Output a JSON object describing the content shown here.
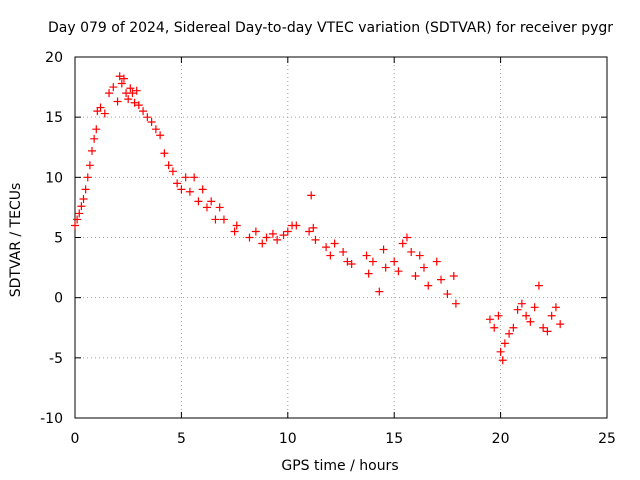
{
  "chart_data": {
    "type": "scatter",
    "title": "Day 079 of 2024, Sidereal Day-to-day VTEC variation (SDTVAR) for receiver pygr",
    "xlabel": "GPS time / hours",
    "ylabel": "SDTVAR / TECUs",
    "xlim": [
      0,
      25
    ],
    "ylim": [
      -10,
      20
    ],
    "xticks": [
      "0",
      "5",
      "10",
      "15",
      "20",
      "25"
    ],
    "yticks": [
      "-10",
      "-5",
      "0",
      "5",
      "10",
      "15",
      "20"
    ],
    "grid": true,
    "marker": "plus",
    "series_color": "#ff0000",
    "series": [
      {
        "name": "SDTVAR",
        "x": [
          0.0,
          0.1,
          0.2,
          0.3,
          0.4,
          0.5,
          0.6,
          0.7,
          0.8,
          0.9,
          1.0,
          1.05,
          1.2,
          1.4,
          1.6,
          1.8,
          2.0,
          2.1,
          2.2,
          2.3,
          2.4,
          2.5,
          2.6,
          2.7,
          2.8,
          2.9,
          3.0,
          3.2,
          3.4,
          3.6,
          3.8,
          4.0,
          4.2,
          4.4,
          4.6,
          4.8,
          5.0,
          5.2,
          5.4,
          5.6,
          5.8,
          6.0,
          6.2,
          6.4,
          6.6,
          6.8,
          7.0,
          7.5,
          7.6,
          8.2,
          8.5,
          8.8,
          9.0,
          9.3,
          9.5,
          9.8,
          10.0,
          10.2,
          10.4,
          11.0,
          11.1,
          11.2,
          11.3,
          11.8,
          12.0,
          12.2,
          12.6,
          12.8,
          13.0,
          13.7,
          13.8,
          14.0,
          14.3,
          14.5,
          14.6,
          15.0,
          15.2,
          15.4,
          15.6,
          15.8,
          16.0,
          16.2,
          16.4,
          16.6,
          17.0,
          17.2,
          17.5,
          17.8,
          17.9,
          19.5,
          19.7,
          19.9,
          20.0,
          20.1,
          20.2,
          20.4,
          20.6,
          20.8,
          21.0,
          21.2,
          21.4,
          21.6,
          21.8,
          22.0,
          22.2,
          22.4,
          22.6,
          22.8
        ],
        "y": [
          6.0,
          6.5,
          7.0,
          7.6,
          8.2,
          9.0,
          10.0,
          11.0,
          12.2,
          13.2,
          14.0,
          15.5,
          15.8,
          15.3,
          17.0,
          17.5,
          16.3,
          18.4,
          17.8,
          18.2,
          17.0,
          16.5,
          17.4,
          17.0,
          16.2,
          17.2,
          16.0,
          15.5,
          15.0,
          14.6,
          14.0,
          13.5,
          12.0,
          11.0,
          10.5,
          9.5,
          9.0,
          10.0,
          8.8,
          10.0,
          8.0,
          9.0,
          7.5,
          8.0,
          6.5,
          7.5,
          6.5,
          5.5,
          6.0,
          5.0,
          5.5,
          4.5,
          5.0,
          5.3,
          4.8,
          5.2,
          5.5,
          6.0,
          6.0,
          5.5,
          8.5,
          5.8,
          4.8,
          4.2,
          3.5,
          4.5,
          3.8,
          3.0,
          2.8,
          3.5,
          2.0,
          3.0,
          0.5,
          4.0,
          2.5,
          3.0,
          2.2,
          4.5,
          5.0,
          3.8,
          1.8,
          3.5,
          2.5,
          1.0,
          3.0,
          1.5,
          0.3,
          1.8,
          -0.5,
          -1.8,
          -2.5,
          -1.5,
          -4.5,
          -5.2,
          -3.8,
          -3.0,
          -2.5,
          -1.0,
          -0.5,
          -1.5,
          -2.0,
          -0.8,
          1.0,
          -2.5,
          -2.8,
          -1.5,
          -0.8,
          -2.2
        ]
      }
    ]
  }
}
